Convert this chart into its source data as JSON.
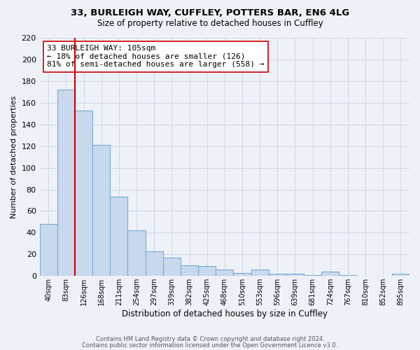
{
  "title": "33, BURLEIGH WAY, CUFFLEY, POTTERS BAR, EN6 4LG",
  "subtitle": "Size of property relative to detached houses in Cuffley",
  "xlabel": "Distribution of detached houses by size in Cuffley",
  "ylabel": "Number of detached properties",
  "bar_labels": [
    "40sqm",
    "83sqm",
    "126sqm",
    "168sqm",
    "211sqm",
    "254sqm",
    "297sqm",
    "339sqm",
    "382sqm",
    "425sqm",
    "468sqm",
    "510sqm",
    "553sqm",
    "596sqm",
    "639sqm",
    "681sqm",
    "724sqm",
    "767sqm",
    "810sqm",
    "852sqm",
    "895sqm"
  ],
  "bar_values": [
    48,
    172,
    153,
    121,
    73,
    42,
    23,
    17,
    10,
    9,
    6,
    3,
    6,
    2,
    2,
    1,
    4,
    1,
    0,
    0,
    2
  ],
  "bar_color": "#c8d9ee",
  "bar_edge_color": "#7aaad0",
  "vline_x": 2,
  "vline_color": "#cc0000",
  "annotation_line1": "33 BURLEIGH WAY: 105sqm",
  "annotation_line2": "← 18% of detached houses are smaller (126)",
  "annotation_line3": "81% of semi-detached houses are larger (558) →",
  "annotation_box_color": "#ffffff",
  "annotation_box_edge": "#cc0000",
  "ylim": [
    0,
    220
  ],
  "yticks": [
    0,
    20,
    40,
    60,
    80,
    100,
    120,
    140,
    160,
    180,
    200,
    220
  ],
  "footer_line1": "Contains HM Land Registry data © Crown copyright and database right 2024.",
  "footer_line2": "Contains public sector information licensed under the Open Government Licence v3.0.",
  "grid_color": "#d0d8e8",
  "background_color": "#eef2f8"
}
